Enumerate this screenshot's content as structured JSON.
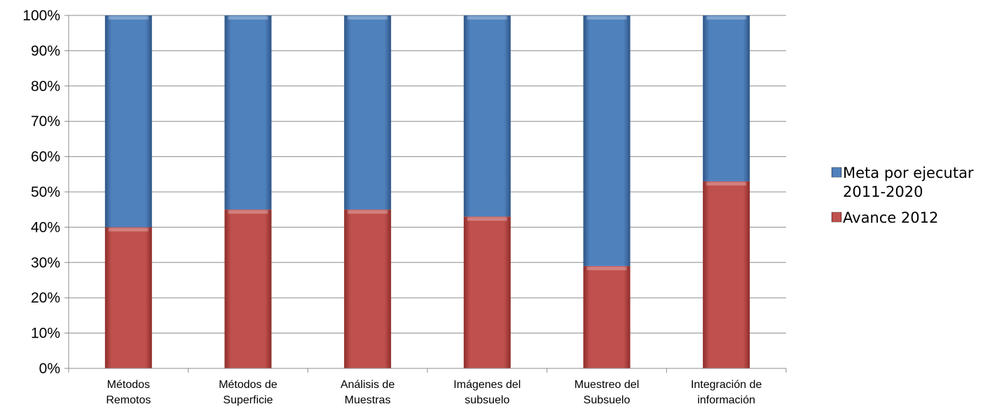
{
  "chart_data": {
    "type": "bar",
    "stacked": true,
    "percent_stacked": true,
    "categories": [
      [
        "Métodos",
        "Remotos"
      ],
      [
        "Métodos de",
        "Superficie"
      ],
      [
        "Análisis de",
        "Muestras"
      ],
      [
        "Imágenes del",
        "subsuelo"
      ],
      [
        "Muestreo del",
        "Subsuelo"
      ],
      [
        "Integración de",
        "información"
      ]
    ],
    "series": [
      {
        "name": "Avance 2012",
        "legend_lines": [
          "Avance 2012"
        ],
        "color": "#c0504d",
        "values": [
          40,
          45,
          45,
          43,
          29,
          53
        ]
      },
      {
        "name": "Meta por ejecutar 2011-2020",
        "legend_lines": [
          "Meta por ejecutar",
          "2011-2020"
        ],
        "color": "#4f81bd",
        "values": [
          60,
          55,
          55,
          57,
          71,
          47
        ]
      }
    ],
    "yticks": [
      "0%",
      "10%",
      "20%",
      "30%",
      "40%",
      "50%",
      "60%",
      "70%",
      "80%",
      "90%",
      "100%"
    ],
    "ylim": [
      0,
      100
    ],
    "title": "",
    "xlabel": "",
    "ylabel": "",
    "grid": true,
    "legend_position": "right"
  }
}
